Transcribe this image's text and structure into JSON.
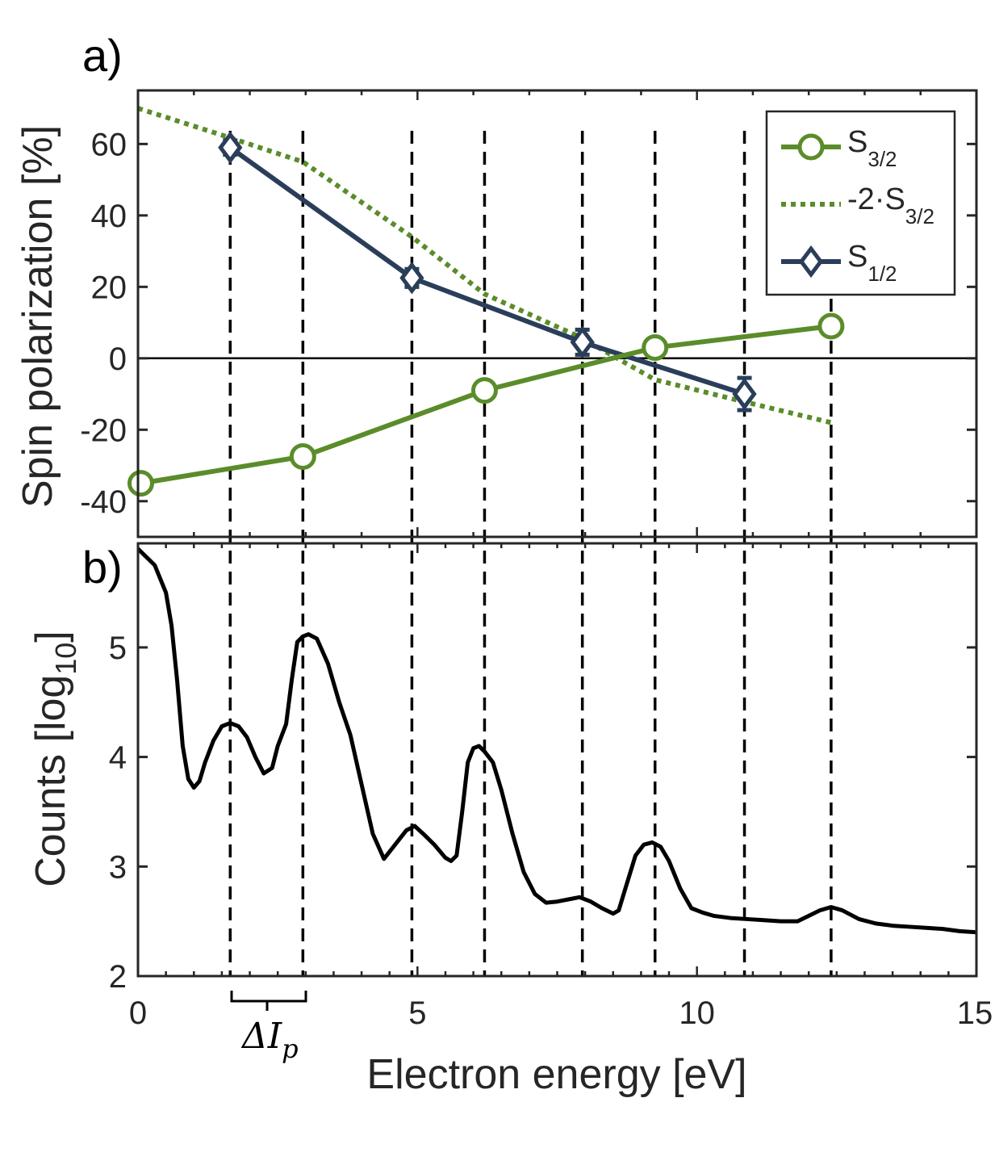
{
  "panel_labels": [
    "a)",
    "b)"
  ],
  "colors": {
    "green": "#5b8c2a",
    "navy": "#2a3e5a",
    "black": "#000000",
    "axis": "#262626"
  },
  "annotation": {
    "delta_symbol": "ΔI",
    "delta_subscript": "p"
  },
  "chart_data": [
    {
      "type": "line",
      "panel": "a)",
      "ylabel": "Spin polarization [%]",
      "xlim": [
        0,
        15
      ],
      "ylim": [
        -50,
        75
      ],
      "yticks": [
        -40,
        -20,
        0,
        20,
        40,
        60
      ],
      "ytick_labels": [
        "-40",
        "-20",
        "0",
        "20",
        "40",
        "60"
      ],
      "zero_line": true,
      "legend_position": "top-right",
      "series": [
        {
          "name": "S",
          "name_sub": "3/2",
          "style": "solid-circle",
          "color": "green",
          "x": [
            0.05,
            2.95,
            6.2,
            9.25,
            12.4
          ],
          "y": [
            -35,
            -27.5,
            -9,
            3,
            9
          ],
          "err": [
            0,
            0,
            0,
            1.5,
            2.5
          ]
        },
        {
          "name": "-2·S",
          "name_sub": "3/2",
          "style": "dotted",
          "color": "green",
          "x": [
            0,
            1.6,
            2.95,
            4.9,
            6.2,
            7.9,
            9.25,
            10.8,
            12.4
          ],
          "y": [
            70,
            62,
            55,
            34,
            18,
            6,
            -6,
            -12,
            -18
          ]
        },
        {
          "name": "S",
          "name_sub": "1/2",
          "style": "solid-diamond",
          "color": "navy",
          "x": [
            1.65,
            4.9,
            7.95,
            10.85
          ],
          "y": [
            59,
            22.5,
            4.5,
            -10
          ],
          "err": [
            2,
            2.5,
            3.5,
            4.5
          ]
        }
      ],
      "vertical_markers_x": [
        1.65,
        2.95,
        4.9,
        6.2,
        7.95,
        9.25,
        10.85,
        12.4
      ]
    },
    {
      "type": "line",
      "panel": "b)",
      "xlabel": "Electron energy [eV]",
      "ylabel": "Counts [log",
      "ylabel_sub": "10",
      "ylabel_close": "]",
      "xlim": [
        0,
        15
      ],
      "ylim": [
        2,
        5.95
      ],
      "xticks": [
        0,
        5,
        10,
        15
      ],
      "xtick_labels": [
        "0",
        "5",
        "10",
        "15"
      ],
      "yticks": [
        2,
        3,
        4,
        5
      ],
      "ytick_labels": [
        "2",
        "3",
        "4",
        "5"
      ],
      "series": [
        {
          "style": "solid",
          "color": "black",
          "x": [
            0.0,
            0.3,
            0.5,
            0.6,
            0.7,
            0.8,
            0.9,
            1.0,
            1.1,
            1.2,
            1.35,
            1.5,
            1.65,
            1.8,
            1.95,
            2.1,
            2.25,
            2.4,
            2.5,
            2.65,
            2.75,
            2.85,
            2.95,
            3.05,
            3.2,
            3.4,
            3.6,
            3.8,
            4.0,
            4.2,
            4.4,
            4.6,
            4.8,
            4.95,
            5.1,
            5.3,
            5.5,
            5.6,
            5.7,
            5.8,
            5.9,
            6.0,
            6.1,
            6.2,
            6.35,
            6.5,
            6.7,
            6.9,
            7.1,
            7.3,
            7.5,
            7.7,
            7.9,
            8.1,
            8.3,
            8.5,
            8.6,
            8.75,
            8.9,
            9.05,
            9.2,
            9.35,
            9.5,
            9.7,
            9.9,
            10.1,
            10.3,
            10.6,
            10.9,
            11.2,
            11.5,
            11.8,
            12.0,
            12.2,
            12.4,
            12.6,
            12.9,
            13.2,
            13.5,
            13.8,
            14.1,
            14.4,
            14.7,
            15.0
          ],
          "y": [
            5.9,
            5.75,
            5.5,
            5.2,
            4.7,
            4.1,
            3.8,
            3.72,
            3.78,
            3.95,
            4.15,
            4.28,
            4.31,
            4.28,
            4.18,
            4.0,
            3.85,
            3.9,
            4.1,
            4.3,
            4.7,
            5.05,
            5.1,
            5.12,
            5.08,
            4.85,
            4.5,
            4.2,
            3.75,
            3.3,
            3.07,
            3.2,
            3.33,
            3.37,
            3.3,
            3.2,
            3.08,
            3.05,
            3.1,
            3.5,
            3.95,
            4.08,
            4.1,
            4.05,
            3.95,
            3.7,
            3.3,
            2.95,
            2.75,
            2.67,
            2.68,
            2.7,
            2.72,
            2.68,
            2.62,
            2.57,
            2.6,
            2.85,
            3.1,
            3.2,
            3.22,
            3.18,
            3.05,
            2.8,
            2.62,
            2.58,
            2.55,
            2.53,
            2.52,
            2.51,
            2.5,
            2.5,
            2.55,
            2.6,
            2.63,
            2.6,
            2.52,
            2.48,
            2.46,
            2.45,
            2.44,
            2.43,
            2.41,
            2.4
          ]
        }
      ]
    }
  ]
}
